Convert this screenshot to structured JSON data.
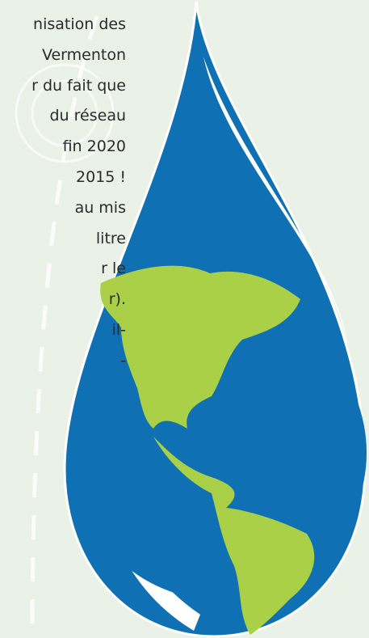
{
  "text": {
    "lines": [
      "nisation des",
      "Vermenton",
      "r du fait que",
      "du réseau",
      "fin 2020",
      "2015 !",
      "au mis",
      "litre",
      "r le",
      "r).",
      "il-",
      "-"
    ]
  }
}
